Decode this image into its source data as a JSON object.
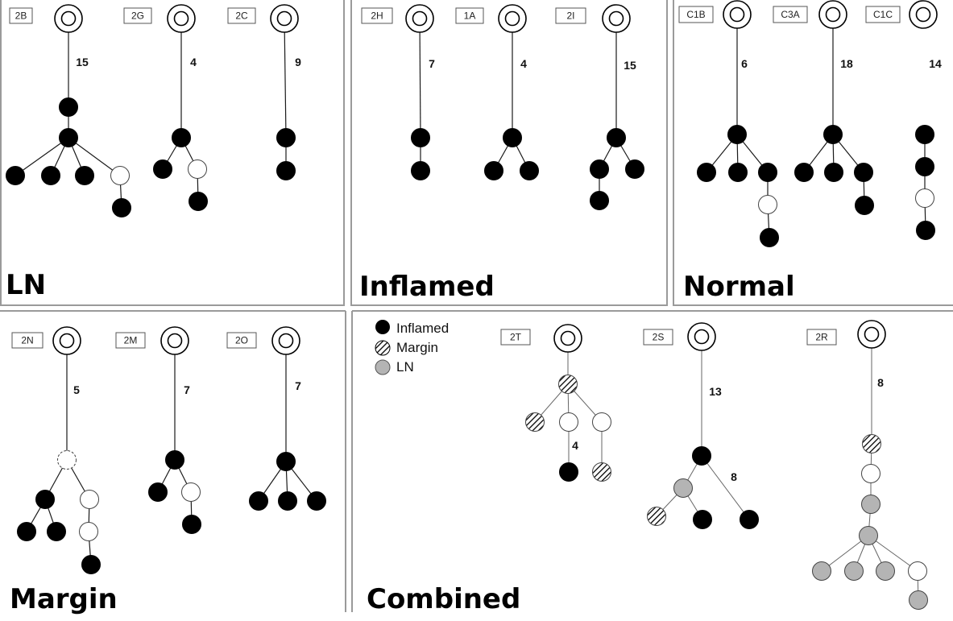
{
  "colors": {
    "inflamed": "#000000",
    "margin_hatch": "#000000",
    "ln": "#b4b4b4",
    "open": "#ffffff",
    "border": "#9a9a9a"
  },
  "legend": {
    "items": [
      {
        "key": "inflamed",
        "label": "Inflamed"
      },
      {
        "key": "margin",
        "label": "Margin"
      },
      {
        "key": "ln",
        "label": "LN"
      }
    ]
  },
  "panels": [
    {
      "id": "ln",
      "title": "LN",
      "trees": [
        {
          "label": "2B",
          "trunk_label": "15",
          "nodes": [
            {
              "t": "root"
            },
            {
              "t": "inflamed"
            },
            {
              "t": "inflamed"
            },
            {
              "t": "inflamed"
            },
            {
              "t": "inflamed"
            },
            {
              "t": "inflamed"
            },
            {
              "t": "open"
            },
            {
              "t": "inflamed"
            }
          ],
          "edges": [
            [
              0,
              1
            ],
            [
              1,
              2
            ],
            [
              2,
              3
            ],
            [
              2,
              4
            ],
            [
              2,
              5
            ],
            [
              2,
              6
            ],
            [
              6,
              7
            ]
          ]
        },
        {
          "label": "2G",
          "trunk_label": "4",
          "nodes": [
            {
              "t": "root"
            },
            {
              "t": "inflamed"
            },
            {
              "t": "inflamed"
            },
            {
              "t": "open"
            },
            {
              "t": "inflamed"
            }
          ],
          "edges": [
            [
              0,
              1
            ],
            [
              1,
              2
            ],
            [
              1,
              3
            ],
            [
              3,
              4
            ]
          ]
        },
        {
          "label": "2C",
          "trunk_label": "9",
          "nodes": [
            {
              "t": "root"
            },
            {
              "t": "inflamed"
            },
            {
              "t": "inflamed"
            }
          ],
          "edges": [
            [
              0,
              1
            ],
            [
              1,
              2
            ]
          ]
        }
      ]
    },
    {
      "id": "inflamed",
      "title": "Inflamed",
      "trees": [
        {
          "label": "2H",
          "trunk_label": "7",
          "nodes": [
            {
              "t": "root"
            },
            {
              "t": "inflamed"
            },
            {
              "t": "inflamed"
            }
          ],
          "edges": [
            [
              0,
              1
            ],
            [
              1,
              2
            ]
          ]
        },
        {
          "label": "1A",
          "trunk_label": "4",
          "nodes": [
            {
              "t": "root"
            },
            {
              "t": "inflamed"
            },
            {
              "t": "inflamed"
            },
            {
              "t": "inflamed"
            }
          ],
          "edges": [
            [
              0,
              1
            ],
            [
              1,
              2
            ],
            [
              1,
              3
            ]
          ]
        },
        {
          "label": "2I",
          "trunk_label": "15",
          "nodes": [
            {
              "t": "root"
            },
            {
              "t": "inflamed"
            },
            {
              "t": "inflamed"
            },
            {
              "t": "inflamed"
            },
            {
              "t": "inflamed"
            }
          ],
          "edges": [
            [
              0,
              1
            ],
            [
              1,
              2
            ],
            [
              1,
              3
            ],
            [
              2,
              4
            ]
          ]
        }
      ]
    },
    {
      "id": "normal",
      "title": "Normal",
      "trees": [
        {
          "label": "C1B",
          "trunk_label": "6",
          "nodes": [
            {
              "t": "root"
            },
            {
              "t": "inflamed"
            },
            {
              "t": "inflamed"
            },
            {
              "t": "inflamed"
            },
            {
              "t": "inflamed"
            },
            {
              "t": "open"
            },
            {
              "t": "inflamed"
            }
          ],
          "edges": [
            [
              0,
              1
            ],
            [
              1,
              2
            ],
            [
              1,
              3
            ],
            [
              1,
              4
            ],
            [
              4,
              5
            ],
            [
              5,
              6
            ]
          ]
        },
        {
          "label": "C3A",
          "trunk_label": "18",
          "nodes": [
            {
              "t": "root"
            },
            {
              "t": "inflamed"
            },
            {
              "t": "inflamed"
            },
            {
              "t": "inflamed"
            },
            {
              "t": "inflamed"
            },
            {
              "t": "inflamed"
            }
          ],
          "edges": [
            [
              0,
              1
            ],
            [
              1,
              2
            ],
            [
              1,
              3
            ],
            [
              1,
              4
            ],
            [
              4,
              5
            ]
          ]
        },
        {
          "label": "C1C",
          "trunk_label": "14",
          "nodes": [
            {
              "t": "root"
            },
            {
              "t": "inflamed"
            },
            {
              "t": "inflamed"
            },
            {
              "t": "open"
            },
            {
              "t": "inflamed"
            }
          ],
          "edges": [
            [
              1,
              2
            ],
            [
              2,
              3
            ],
            [
              3,
              4
            ]
          ]
        }
      ]
    },
    {
      "id": "margin",
      "title": "Margin",
      "trees": [
        {
          "label": "2N",
          "trunk_label": "5",
          "nodes": [
            {
              "t": "root"
            },
            {
              "t": "dashed"
            },
            {
              "t": "inflamed"
            },
            {
              "t": "open"
            },
            {
              "t": "inflamed"
            },
            {
              "t": "inflamed"
            },
            {
              "t": "open"
            },
            {
              "t": "inflamed"
            }
          ],
          "edges": [
            [
              0,
              1
            ],
            [
              1,
              2
            ],
            [
              1,
              3
            ],
            [
              2,
              4
            ],
            [
              2,
              5
            ],
            [
              3,
              6
            ],
            [
              6,
              7
            ]
          ]
        },
        {
          "label": "2M",
          "trunk_label": "7",
          "nodes": [
            {
              "t": "root"
            },
            {
              "t": "inflamed"
            },
            {
              "t": "inflamed"
            },
            {
              "t": "open"
            },
            {
              "t": "inflamed"
            }
          ],
          "edges": [
            [
              0,
              1
            ],
            [
              1,
              2
            ],
            [
              1,
              3
            ],
            [
              3,
              4
            ]
          ]
        },
        {
          "label": "2O",
          "trunk_label": "7",
          "nodes": [
            {
              "t": "root"
            },
            {
              "t": "inflamed"
            },
            {
              "t": "inflamed"
            },
            {
              "t": "inflamed"
            },
            {
              "t": "inflamed"
            }
          ],
          "edges": [
            [
              0,
              1
            ],
            [
              1,
              2
            ],
            [
              1,
              3
            ],
            [
              1,
              4
            ]
          ]
        }
      ]
    },
    {
      "id": "combined",
      "title": "Combined",
      "trees": [
        {
          "label": "2T",
          "trunk_label": "",
          "inner_label": "4",
          "nodes": [
            {
              "t": "root"
            },
            {
              "t": "margin"
            },
            {
              "t": "margin"
            },
            {
              "t": "open"
            },
            {
              "t": "open"
            },
            {
              "t": "inflamed"
            },
            {
              "t": "margin"
            }
          ],
          "edges": [
            [
              0,
              1
            ],
            [
              1,
              2
            ],
            [
              1,
              3
            ],
            [
              1,
              4
            ],
            [
              3,
              5
            ],
            [
              4,
              6
            ]
          ]
        },
        {
          "label": "2S",
          "trunk_label": "13",
          "inner_label": "8",
          "nodes": [
            {
              "t": "root"
            },
            {
              "t": "inflamed"
            },
            {
              "t": "ln"
            },
            {
              "t": "inflamed"
            },
            {
              "t": "margin"
            },
            {
              "t": "inflamed"
            }
          ],
          "edges": [
            [
              0,
              1
            ],
            [
              1,
              2
            ],
            [
              1,
              3
            ],
            [
              2,
              4
            ],
            [
              2,
              5
            ]
          ]
        },
        {
          "label": "2R",
          "trunk_label": "8",
          "nodes": [
            {
              "t": "root"
            },
            {
              "t": "margin"
            },
            {
              "t": "open"
            },
            {
              "t": "ln"
            },
            {
              "t": "ln"
            },
            {
              "t": "ln"
            },
            {
              "t": "ln"
            },
            {
              "t": "ln"
            },
            {
              "t": "open"
            },
            {
              "t": "ln"
            }
          ],
          "edges": [
            [
              0,
              1
            ],
            [
              1,
              2
            ],
            [
              2,
              3
            ],
            [
              3,
              4
            ],
            [
              4,
              5
            ],
            [
              4,
              6
            ],
            [
              4,
              7
            ],
            [
              4,
              8
            ],
            [
              8,
              9
            ]
          ]
        }
      ]
    }
  ]
}
